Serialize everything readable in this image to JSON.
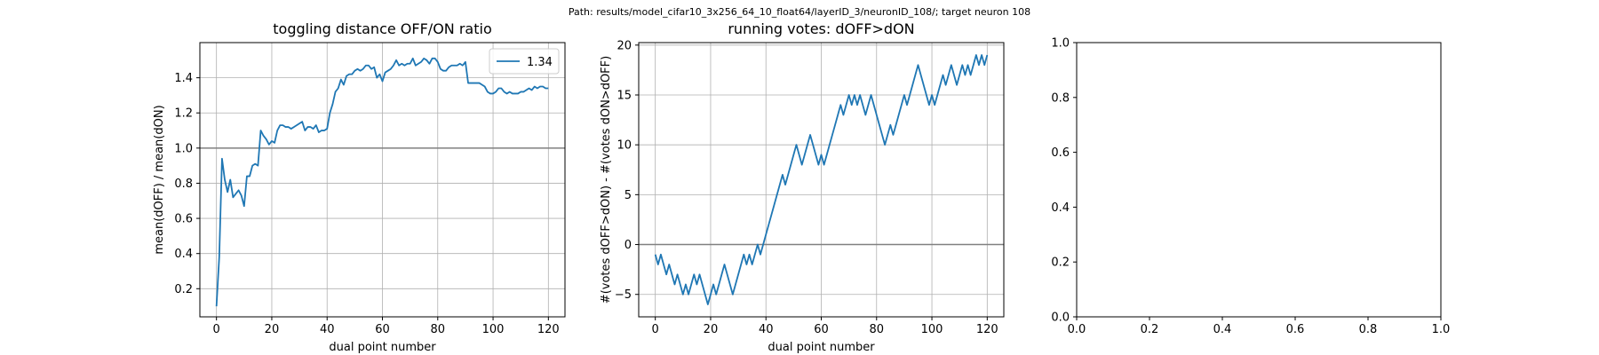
{
  "suptitle": "Path: results/model_cifar10_3x256_64_10_float64/layerID_3/neuronID_108/; target neuron 108",
  "colors": {
    "series": "#1f77b4",
    "refline": "#808080",
    "grid": "#b0b0b0",
    "axes": "#000000"
  },
  "chart_data": [
    {
      "type": "line",
      "title": "toggling distance OFF/ON ratio",
      "xlabel": "dual point number",
      "ylabel": "mean(dOFF) / mean(dON)",
      "xlim": [
        -6,
        126
      ],
      "ylim": [
        0.04,
        1.6
      ],
      "xticks": [
        0,
        20,
        40,
        60,
        80,
        100,
        120
      ],
      "yticks": [
        0.2,
        0.4,
        0.6,
        0.8,
        1.0,
        1.2,
        1.4
      ],
      "grid": true,
      "legend": {
        "position": "top-right",
        "entries": [
          "1.34"
        ]
      },
      "hline": 1.0,
      "series": [
        {
          "name": "1.34",
          "x": [
            0,
            1,
            2,
            3,
            4,
            5,
            6,
            7,
            8,
            9,
            10,
            11,
            12,
            13,
            14,
            15,
            16,
            17,
            18,
            19,
            20,
            21,
            22,
            23,
            24,
            25,
            26,
            27,
            28,
            29,
            30,
            31,
            32,
            33,
            34,
            35,
            36,
            37,
            38,
            39,
            40,
            41,
            42,
            43,
            44,
            45,
            46,
            47,
            48,
            49,
            50,
            51,
            52,
            53,
            54,
            55,
            56,
            57,
            58,
            59,
            60,
            61,
            62,
            63,
            64,
            65,
            66,
            67,
            68,
            69,
            70,
            71,
            72,
            73,
            74,
            75,
            76,
            77,
            78,
            79,
            80,
            81,
            82,
            83,
            84,
            85,
            86,
            87,
            88,
            89,
            90,
            91,
            92,
            93,
            94,
            95,
            96,
            97,
            98,
            99,
            100,
            101,
            102,
            103,
            104,
            105,
            106,
            107,
            108,
            109,
            110,
            111,
            112,
            113,
            114,
            115,
            116,
            117,
            118,
            119,
            120
          ],
          "y": [
            0.1,
            0.38,
            0.94,
            0.82,
            0.75,
            0.82,
            0.72,
            0.74,
            0.76,
            0.73,
            0.67,
            0.84,
            0.84,
            0.9,
            0.91,
            0.9,
            1.1,
            1.07,
            1.05,
            1.02,
            1.04,
            1.03,
            1.1,
            1.13,
            1.13,
            1.12,
            1.12,
            1.11,
            1.12,
            1.13,
            1.14,
            1.15,
            1.1,
            1.12,
            1.12,
            1.11,
            1.13,
            1.09,
            1.1,
            1.1,
            1.11,
            1.2,
            1.25,
            1.32,
            1.34,
            1.39,
            1.36,
            1.41,
            1.42,
            1.42,
            1.44,
            1.45,
            1.44,
            1.45,
            1.47,
            1.47,
            1.45,
            1.46,
            1.4,
            1.42,
            1.38,
            1.43,
            1.44,
            1.45,
            1.47,
            1.5,
            1.47,
            1.48,
            1.47,
            1.48,
            1.48,
            1.51,
            1.47,
            1.48,
            1.49,
            1.51,
            1.5,
            1.48,
            1.51,
            1.51,
            1.49,
            1.45,
            1.44,
            1.44,
            1.46,
            1.47,
            1.47,
            1.47,
            1.48,
            1.47,
            1.49,
            1.37,
            1.37,
            1.37,
            1.37,
            1.37,
            1.36,
            1.35,
            1.32,
            1.31,
            1.31,
            1.32,
            1.34,
            1.34,
            1.32,
            1.31,
            1.32,
            1.31,
            1.31,
            1.31,
            1.32,
            1.32,
            1.33,
            1.34,
            1.33,
            1.35,
            1.34,
            1.35,
            1.35,
            1.34,
            1.34
          ]
        }
      ]
    },
    {
      "type": "line",
      "title": "running votes: dOFF>dON",
      "xlabel": "dual point number",
      "ylabel": "#(votes dOFF>dON) - #(votes dON>dOFF)",
      "xlim": [
        -6,
        126
      ],
      "ylim": [
        -7.25,
        20.25
      ],
      "xticks": [
        0,
        20,
        40,
        60,
        80,
        100,
        120
      ],
      "yticks": [
        -5,
        0,
        5,
        10,
        15,
        20
      ],
      "grid": true,
      "hline": 0,
      "series": [
        {
          "x": [
            0,
            1,
            2,
            3,
            4,
            5,
            6,
            7,
            8,
            9,
            10,
            11,
            12,
            13,
            14,
            15,
            16,
            17,
            18,
            19,
            20,
            21,
            22,
            23,
            24,
            25,
            26,
            27,
            28,
            29,
            30,
            31,
            32,
            33,
            34,
            35,
            36,
            37,
            38,
            39,
            40,
            41,
            42,
            43,
            44,
            45,
            46,
            47,
            48,
            49,
            50,
            51,
            52,
            53,
            54,
            55,
            56,
            57,
            58,
            59,
            60,
            61,
            62,
            63,
            64,
            65,
            66,
            67,
            68,
            69,
            70,
            71,
            72,
            73,
            74,
            75,
            76,
            77,
            78,
            79,
            80,
            81,
            82,
            83,
            84,
            85,
            86,
            87,
            88,
            89,
            90,
            91,
            92,
            93,
            94,
            95,
            96,
            97,
            98,
            99,
            100,
            101,
            102,
            103,
            104,
            105,
            106,
            107,
            108,
            109,
            110,
            111,
            112,
            113,
            114,
            115,
            116,
            117,
            118,
            119,
            120
          ],
          "y": [
            -1,
            -2,
            -1,
            -2,
            -3,
            -2,
            -3,
            -4,
            -3,
            -4,
            -5,
            -4,
            -5,
            -4,
            -3,
            -4,
            -3,
            -4,
            -5,
            -6,
            -5,
            -4,
            -5,
            -4,
            -3,
            -2,
            -3,
            -4,
            -5,
            -4,
            -3,
            -2,
            -1,
            -2,
            -1,
            -2,
            -1,
            0,
            -1,
            0,
            1,
            2,
            3,
            4,
            5,
            6,
            7,
            6,
            7,
            8,
            9,
            10,
            9,
            8,
            9,
            10,
            11,
            10,
            9,
            8,
            9,
            8,
            9,
            10,
            11,
            12,
            13,
            14,
            13,
            14,
            15,
            14,
            15,
            14,
            15,
            14,
            13,
            14,
            15,
            14,
            13,
            12,
            11,
            10,
            11,
            12,
            11,
            12,
            13,
            14,
            15,
            14,
            15,
            16,
            17,
            18,
            17,
            16,
            15,
            14,
            15,
            14,
            15,
            16,
            17,
            16,
            17,
            18,
            17,
            16,
            17,
            18,
            17,
            18,
            17,
            18,
            19,
            18,
            19,
            18,
            19
          ]
        }
      ]
    },
    {
      "type": "line",
      "title": "",
      "xlabel": "",
      "ylabel": "",
      "xlim": [
        0,
        1
      ],
      "ylim": [
        0,
        1
      ],
      "xticks": [
        0.0,
        0.2,
        0.4,
        0.6,
        0.8,
        1.0
      ],
      "yticks": [
        0.0,
        0.2,
        0.4,
        0.6,
        0.8,
        1.0
      ],
      "xticklabels": [
        "0.0",
        "0.2",
        "0.4",
        "0.6",
        "0.8",
        "1.0"
      ],
      "yticklabels": [
        "0.0",
        "0.2",
        "0.4",
        "0.6",
        "0.8",
        "1.0"
      ],
      "grid": false,
      "series": []
    }
  ]
}
